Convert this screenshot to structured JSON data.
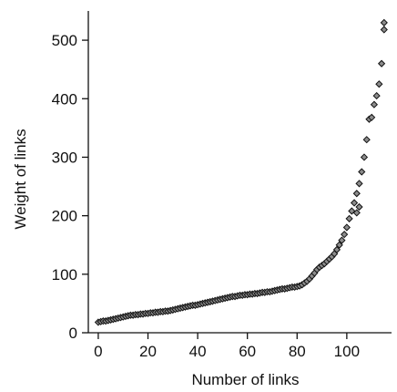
{
  "chart_data": {
    "type": "scatter",
    "title": "",
    "xlabel": "Number of links",
    "ylabel": "Weight of links",
    "xlim": [
      -4,
      118
    ],
    "ylim": [
      0,
      550
    ],
    "xticks": [
      0,
      20,
      40,
      60,
      80,
      100
    ],
    "yticks": [
      0,
      100,
      200,
      300,
      400,
      500
    ],
    "xtick_labels": [
      "0",
      "20",
      "40",
      "60",
      "80",
      "100"
    ],
    "ytick_labels": [
      "0",
      "100",
      "200",
      "300",
      "400",
      "500"
    ],
    "grid": false,
    "legend": "none",
    "marker": "diamond",
    "marker_color": "#8c8c8c",
    "marker_edge_color": "#111111",
    "series": [
      {
        "x": [
          0,
          1,
          2,
          3,
          4,
          5,
          6,
          7,
          8,
          9,
          10,
          11,
          12,
          13,
          14,
          15,
          16,
          17,
          18,
          19,
          20,
          21,
          22,
          23,
          24,
          25,
          26,
          27,
          28,
          29,
          30,
          31,
          32,
          33,
          34,
          35,
          36,
          37,
          38,
          39,
          40,
          41,
          42,
          43,
          44,
          45,
          46,
          47,
          48,
          49,
          50,
          51,
          52,
          53,
          54,
          55,
          56,
          57,
          58,
          59,
          60,
          61,
          62,
          63,
          64,
          65,
          66,
          67,
          68,
          69,
          70,
          71,
          72,
          73,
          74,
          75,
          76,
          77,
          78,
          79,
          80,
          81,
          82,
          83,
          84,
          85,
          86,
          87,
          88,
          89,
          90,
          91,
          92,
          93,
          94,
          95,
          96,
          97,
          98,
          99,
          100,
          101,
          102,
          103,
          104,
          105,
          106,
          107,
          108,
          109,
          110,
          111,
          112,
          113,
          114,
          115
        ],
        "y": [
          18,
          19,
          20,
          20,
          21,
          22,
          23,
          24,
          25,
          26,
          27,
          28,
          29,
          30,
          30,
          31,
          31,
          32,
          32,
          33,
          33,
          34,
          34,
          35,
          35,
          36,
          36,
          37,
          37,
          38,
          39,
          40,
          41,
          42,
          43,
          44,
          45,
          46,
          47,
          47,
          48,
          49,
          50,
          51,
          52,
          53,
          54,
          55,
          56,
          57,
          58,
          59,
          60,
          61,
          62,
          62,
          63,
          64,
          64,
          65,
          65,
          66,
          66,
          67,
          67,
          68,
          69,
          69,
          70,
          70,
          71,
          72,
          73,
          74,
          75,
          75,
          76,
          77,
          78,
          78,
          79,
          80,
          82,
          85,
          88,
          92,
          97,
          102,
          108,
          112,
          115,
          118,
          122,
          126,
          130,
          135,
          142,
          150,
          158,
          168,
          180,
          195,
          208,
          222,
          238,
          255,
          275,
          300,
          330,
          365,
          368,
          390,
          405,
          425,
          460,
          530
        ],
        "extra_points": [
          [
            115,
            518
          ],
          [
            105,
            215
          ],
          [
            104,
            205
          ]
        ]
      }
    ]
  }
}
